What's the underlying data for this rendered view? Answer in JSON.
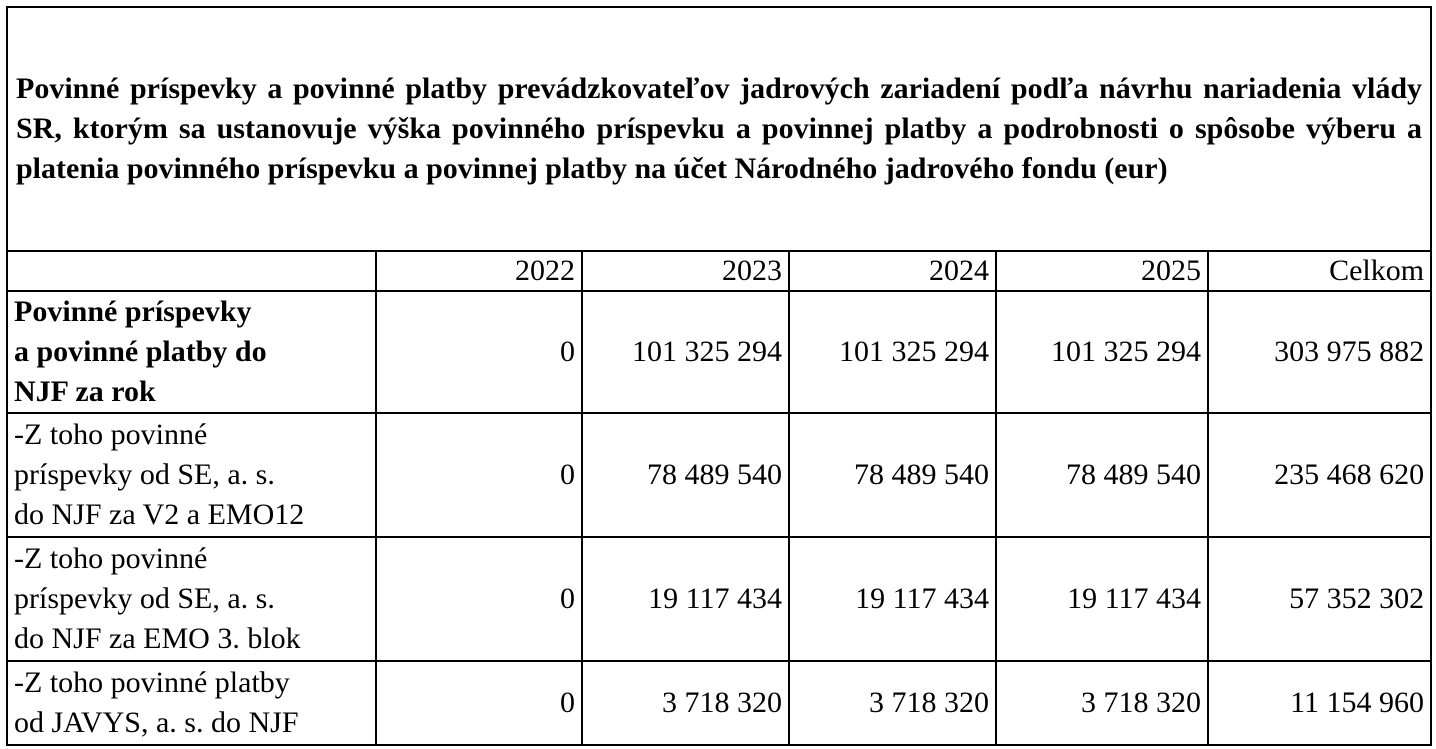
{
  "title": "Povinné príspevky a povinné platby prevádzkovateľov jadrových zariadení podľa návrhu nariadenia vlády SR, ktorým sa ustanovuje výška povinného príspevku a povinnej platby a podrobnosti o spôsobe výberu a platenia povinného príspevku a povinnej platby na účet Národného jadrového fondu (eur)",
  "columns": [
    "",
    "2022",
    "2023",
    "2024",
    "2025",
    "Celkom"
  ],
  "rows": [
    {
      "label_lines": [
        "Povinné príspevky",
        "a povinné platby do",
        "NJF za rok"
      ],
      "values": [
        "0",
        "101 325 294",
        "101 325 294",
        "101 325 294",
        "303 975 882"
      ]
    },
    {
      "label_lines": [
        "-Z toho povinné",
        "príspevky od SE, a. s.",
        "do NJF za V2 a EMO12"
      ],
      "values": [
        "0",
        "78 489 540",
        "78 489 540",
        "78 489 540",
        "235 468 620"
      ]
    },
    {
      "label_lines": [
        "-Z toho povinné",
        "príspevky od SE, a. s.",
        "do NJF za EMO 3. blok"
      ],
      "values": [
        "0",
        "19 117 434",
        "19 117 434",
        "19 117 434",
        "57 352 302"
      ]
    },
    {
      "label_lines": [
        "-Z toho povinné platby",
        "od JAVYS, a. s. do NJF"
      ],
      "values": [
        "0",
        "3 718 320",
        "3 718 320",
        "3 718 320",
        "11 154 960"
      ]
    }
  ]
}
